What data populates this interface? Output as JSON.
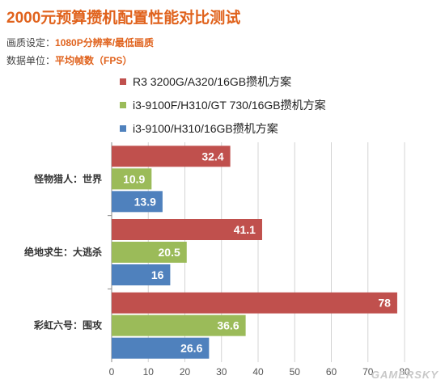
{
  "title": "2000元预算攒机配置性能对比测试",
  "meta": [
    {
      "key": "画质设定：",
      "value": "1080P分辨率/最低画质"
    },
    {
      "key": "数据单位：",
      "value": "平均帧数（FPS）"
    }
  ],
  "watermark": "GAMERSKY",
  "colors": {
    "series1": "#c0504d",
    "series2": "#9bbb59",
    "series3": "#4f81bd",
    "title": "#e0621c"
  },
  "chart_data": {
    "type": "bar",
    "orientation": "horizontal",
    "categories": [
      "怪物猎人：世界",
      "绝地求生：大逃杀",
      "彩虹六号：围攻"
    ],
    "series": [
      {
        "name": "R3 3200G/A320/16GB攒机方案",
        "color": "#c0504d",
        "values": [
          32.4,
          41.1,
          78
        ]
      },
      {
        "name": "i3-9100F/H310/GT 730/16GB攒机方案",
        "color": "#9bbb59",
        "values": [
          10.9,
          20.5,
          36.6
        ]
      },
      {
        "name": "i3-9100/H310/16GB攒机方案",
        "color": "#4f81bd",
        "values": [
          13.9,
          16,
          26.6
        ]
      }
    ],
    "xlim": [
      0,
      80
    ],
    "xticks": [
      "0",
      "10",
      "20",
      "30",
      "40",
      "50",
      "60",
      "70",
      "80"
    ],
    "grid": true,
    "legend": "top"
  }
}
